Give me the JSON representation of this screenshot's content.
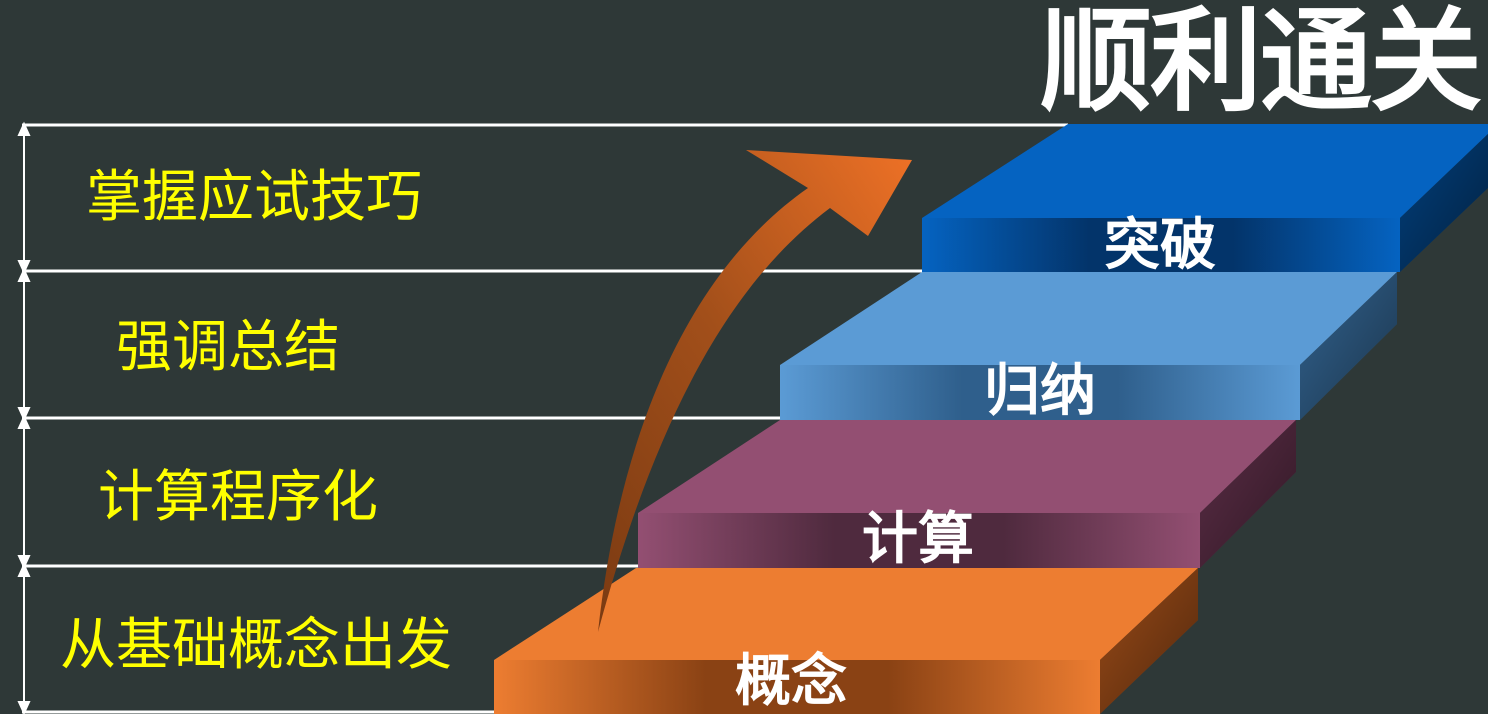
{
  "title": "顺利通关",
  "left_labels": [
    {
      "id": "technique",
      "text": "掌握应试技巧"
    },
    {
      "id": "summary",
      "text": "强调总结"
    },
    {
      "id": "procedure",
      "text": "计算程序化"
    },
    {
      "id": "basics",
      "text": "从基础概念出发"
    }
  ],
  "steps": [
    {
      "id": "concept",
      "label": "概念",
      "color": "#ed7d31"
    },
    {
      "id": "calculation",
      "label": "计算",
      "color": "#934f72"
    },
    {
      "id": "induction",
      "label": "归纳",
      "color": "#5b9bd5"
    },
    {
      "id": "breakthrough",
      "label": "突破",
      "color": "#0563c1"
    }
  ],
  "colors": {
    "background": "#2e3837",
    "left_text": "#ffff00",
    "title_text": "#ffffff",
    "arrow": "#e06a20"
  }
}
